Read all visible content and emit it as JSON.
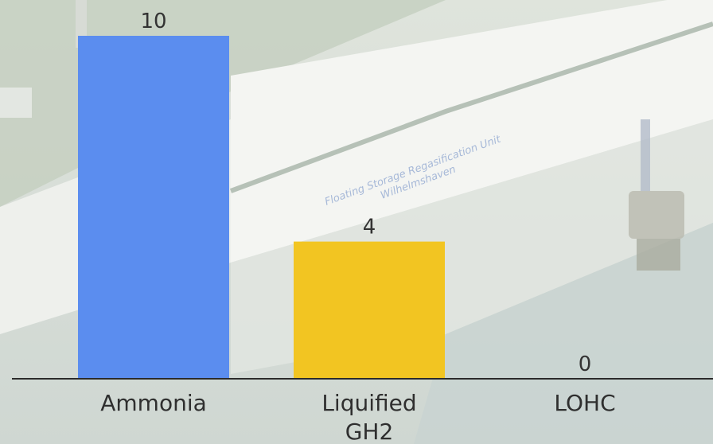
{
  "chart_data": {
    "type": "bar",
    "categories": [
      [
        "Ammonia"
      ],
      [
        "Liquified",
        "GH2"
      ],
      [
        "LOHC"
      ]
    ],
    "values": [
      10,
      4,
      0
    ],
    "colors": [
      "#5b8def",
      "#f2c522",
      "#9aa0a6"
    ],
    "ylim": [
      0,
      10
    ],
    "axis_color": "#2b2b2b",
    "title": "",
    "xlabel": "",
    "ylabel": ""
  },
  "background": {
    "description_icon": "faded-ship-photo",
    "ship_text_line1": "Floating Storage Regasification Unit",
    "ship_text_line2": "Wilhelmshaven"
  }
}
